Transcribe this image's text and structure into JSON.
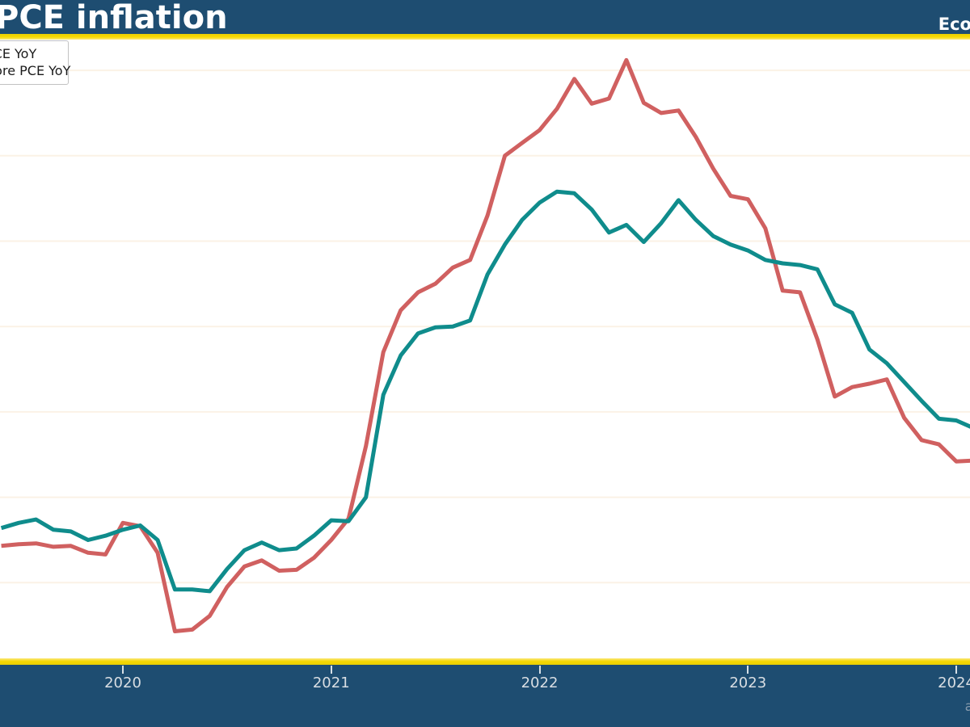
{
  "header": {
    "title": "PCE inflation",
    "source_label": "Eco",
    "background_color": "#1e4d71",
    "accent_color": "#f5d703"
  },
  "footer": {
    "attribution": "a"
  },
  "chart_data": {
    "type": "line",
    "title": "PCE inflation",
    "x_frequency": "monthly",
    "x_range": [
      "2019-06",
      "2024-02"
    ],
    "x_tick_labels": [
      "2020",
      "2021",
      "2022",
      "2023",
      "2024"
    ],
    "xlabel": "",
    "ylabel": "",
    "ylim": [
      0,
      7.4
    ],
    "grid": "faint horizontal lines every 1 percentage point",
    "legend_position": "upper left, clipped at left edge of image",
    "plot_background": "#ffffff",
    "gridline_color": "#fbf2e6",
    "series": [
      {
        "name": "PCE YoY",
        "color": "#d06060",
        "values": [
          1.43,
          1.45,
          1.46,
          1.42,
          1.43,
          1.35,
          1.33,
          1.7,
          1.66,
          1.35,
          0.43,
          0.45,
          0.61,
          0.95,
          1.19,
          1.26,
          1.14,
          1.15,
          1.29,
          1.5,
          1.75,
          2.6,
          3.7,
          4.19,
          4.4,
          4.5,
          4.69,
          4.78,
          5.3,
          6.0,
          6.15,
          6.3,
          6.55,
          6.9,
          6.61,
          6.67,
          7.12,
          6.62,
          6.5,
          6.53,
          6.22,
          5.85,
          5.53,
          5.49,
          5.15,
          4.42,
          4.4,
          3.85,
          3.18,
          3.29,
          3.33,
          3.38,
          2.93,
          2.67,
          2.62,
          2.42,
          2.43
        ]
      },
      {
        "name": "Core PCE YoY",
        "color": "#0f8c8c",
        "values": [
          1.64,
          1.7,
          1.74,
          1.62,
          1.6,
          1.5,
          1.55,
          1.62,
          1.67,
          1.5,
          0.92,
          0.92,
          0.9,
          1.16,
          1.38,
          1.47,
          1.38,
          1.4,
          1.55,
          1.73,
          1.72,
          2.0,
          3.2,
          3.66,
          3.92,
          3.99,
          4.0,
          4.07,
          4.61,
          4.96,
          5.25,
          5.45,
          5.58,
          5.56,
          5.37,
          5.1,
          5.19,
          4.99,
          5.21,
          5.48,
          5.25,
          5.06,
          4.96,
          4.89,
          4.78,
          4.74,
          4.72,
          4.67,
          4.26,
          4.16,
          3.73,
          3.57,
          3.35,
          3.13,
          2.92,
          2.9,
          2.81
        ]
      }
    ]
  }
}
